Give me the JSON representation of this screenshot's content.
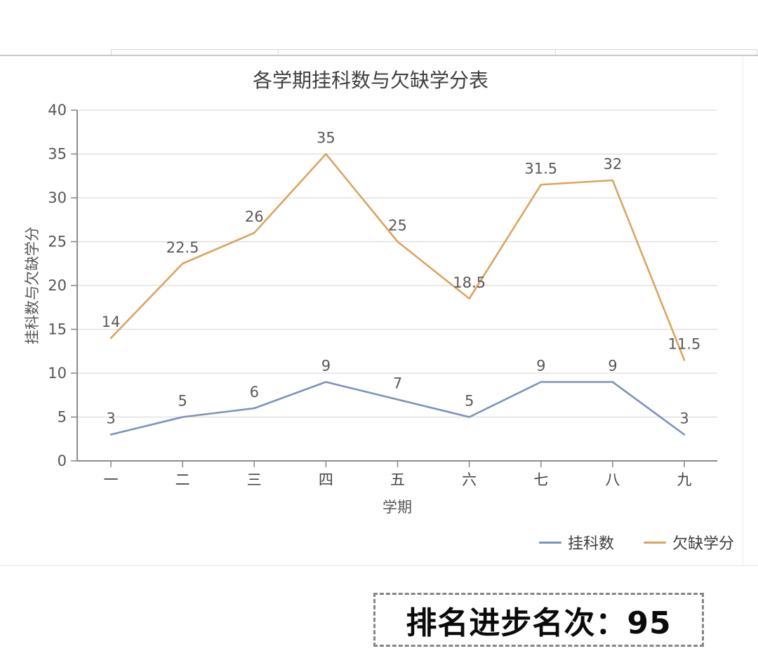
{
  "chart_data": {
    "type": "line",
    "title": "各学期挂科数与欠缺学分表",
    "xlabel": "学期",
    "ylabel": "挂科数与欠缺学分",
    "categories": [
      "一",
      "二",
      "三",
      "四",
      "五",
      "六",
      "七",
      "八",
      "九"
    ],
    "series": [
      {
        "name": "挂科数",
        "color": "#7b92c0",
        "values": [
          3,
          5,
          6,
          9,
          7,
          5,
          9,
          9,
          3
        ]
      },
      {
        "name": "欠缺学分",
        "color": "#dba45f",
        "values": [
          14,
          22.5,
          26,
          35,
          25,
          18.5,
          31.5,
          32,
          11.5
        ]
      }
    ],
    "ylim": [
      0,
      40
    ],
    "ytick_step": 5,
    "grid": true,
    "legend_position": "bottom-right",
    "axis_color": "#8c8c8c",
    "grid_color": "#dcdcdc",
    "label_color": "#595959"
  },
  "footer": {
    "note": "排名进步名次：95"
  }
}
